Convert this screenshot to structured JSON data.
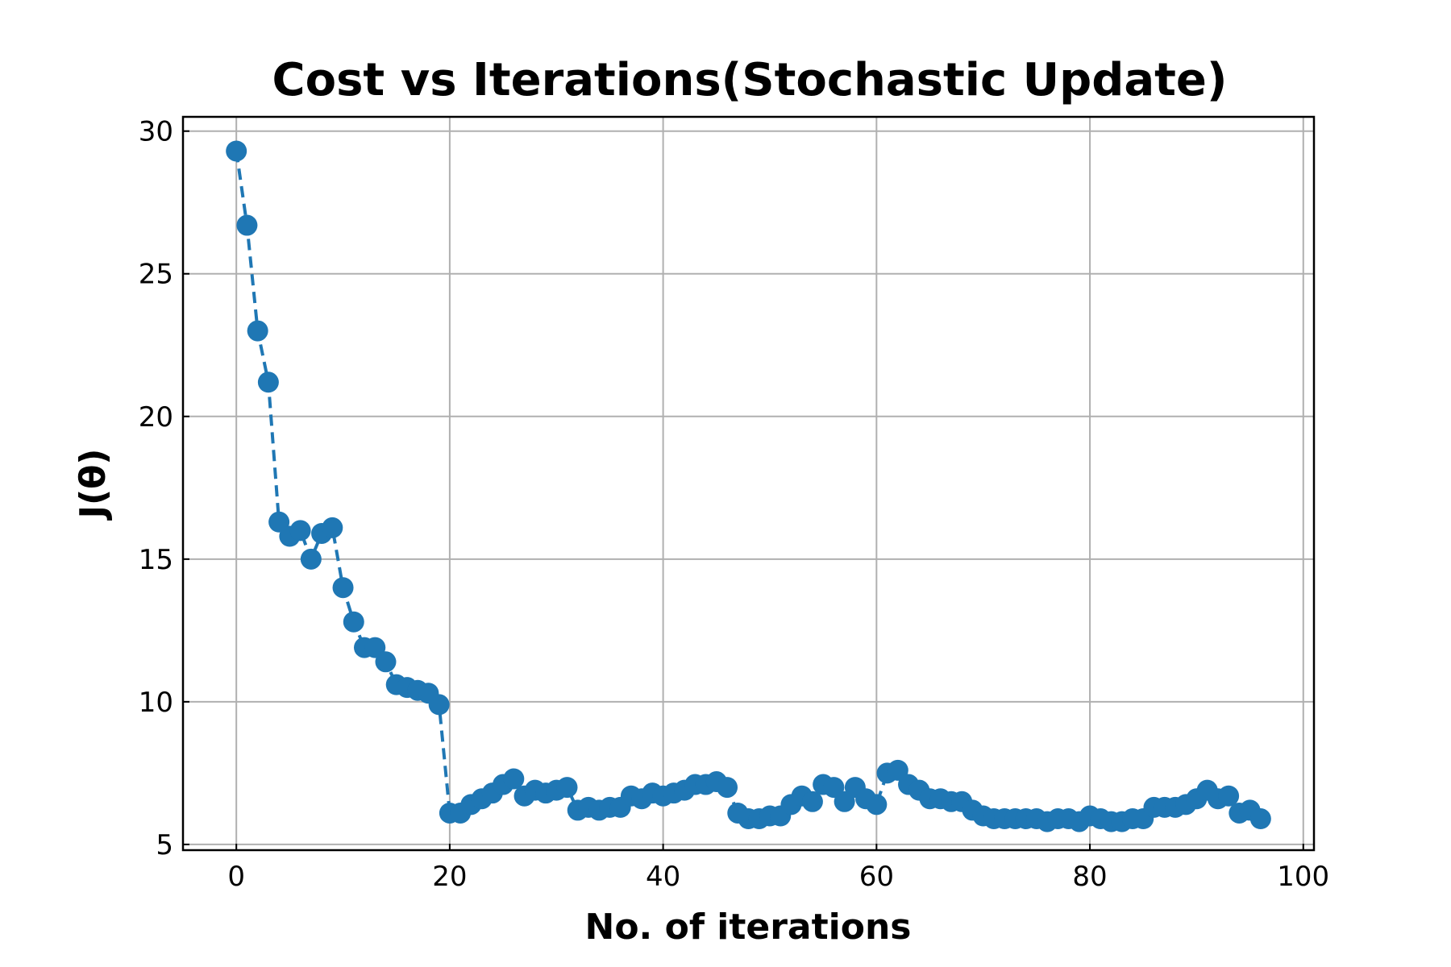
{
  "chart_data": {
    "type": "line",
    "title": "Cost vs Iterations(Stochastic Update)",
    "xlabel": "No. of iterations",
    "ylabel": "J(θ)",
    "xlim": [
      -5,
      101
    ],
    "ylim": [
      4.8,
      30.5
    ],
    "xticks": [
      0,
      20,
      40,
      60,
      80,
      100
    ],
    "yticks": [
      5,
      10,
      15,
      20,
      25,
      30
    ],
    "grid": true,
    "legend": "none",
    "series": [
      {
        "color": "#1f77b4",
        "line_style": "dashed",
        "marker": "circle",
        "x": [
          0,
          1,
          2,
          3,
          4,
          5,
          6,
          7,
          8,
          9,
          10,
          11,
          12,
          13,
          14,
          15,
          16,
          17,
          18,
          19,
          20,
          21,
          22,
          23,
          24,
          25,
          26,
          27,
          28,
          29,
          30,
          31,
          32,
          33,
          34,
          35,
          36,
          37,
          38,
          39,
          40,
          41,
          42,
          43,
          44,
          45,
          46,
          47,
          48,
          49,
          50,
          51,
          52,
          53,
          54,
          55,
          56,
          57,
          58,
          59,
          60,
          61,
          62,
          63,
          64,
          65,
          66,
          67,
          68,
          69,
          70,
          71,
          72,
          73,
          74,
          75,
          76,
          77,
          78,
          79,
          80,
          81,
          82,
          83,
          84,
          85,
          86,
          87,
          88,
          89,
          90,
          91,
          92,
          93,
          94,
          95,
          96
        ],
        "y": [
          29.3,
          26.7,
          23.0,
          21.2,
          16.3,
          15.8,
          16.0,
          15.0,
          15.9,
          16.1,
          14.0,
          12.8,
          11.9,
          11.9,
          11.4,
          10.6,
          10.5,
          10.4,
          10.3,
          9.9,
          6.1,
          6.1,
          6.4,
          6.6,
          6.8,
          7.1,
          7.3,
          6.7,
          6.9,
          6.8,
          6.9,
          7.0,
          6.2,
          6.3,
          6.2,
          6.3,
          6.3,
          6.7,
          6.6,
          6.8,
          6.7,
          6.8,
          6.9,
          7.1,
          7.1,
          7.2,
          7.0,
          6.1,
          5.9,
          5.9,
          6.0,
          6.0,
          6.4,
          6.7,
          6.5,
          7.1,
          7.0,
          6.5,
          7.0,
          6.6,
          6.4,
          7.5,
          7.6,
          7.1,
          6.9,
          6.6,
          6.6,
          6.5,
          6.5,
          6.2,
          6.0,
          5.9,
          5.9,
          5.9,
          5.9,
          5.9,
          5.8,
          5.9,
          5.9,
          5.8,
          6.0,
          5.9,
          5.8,
          5.8,
          5.9,
          5.9,
          6.3,
          6.3,
          6.3,
          6.4,
          6.6,
          6.9,
          6.6,
          6.7,
          6.1,
          6.2,
          5.9
        ]
      }
    ]
  }
}
